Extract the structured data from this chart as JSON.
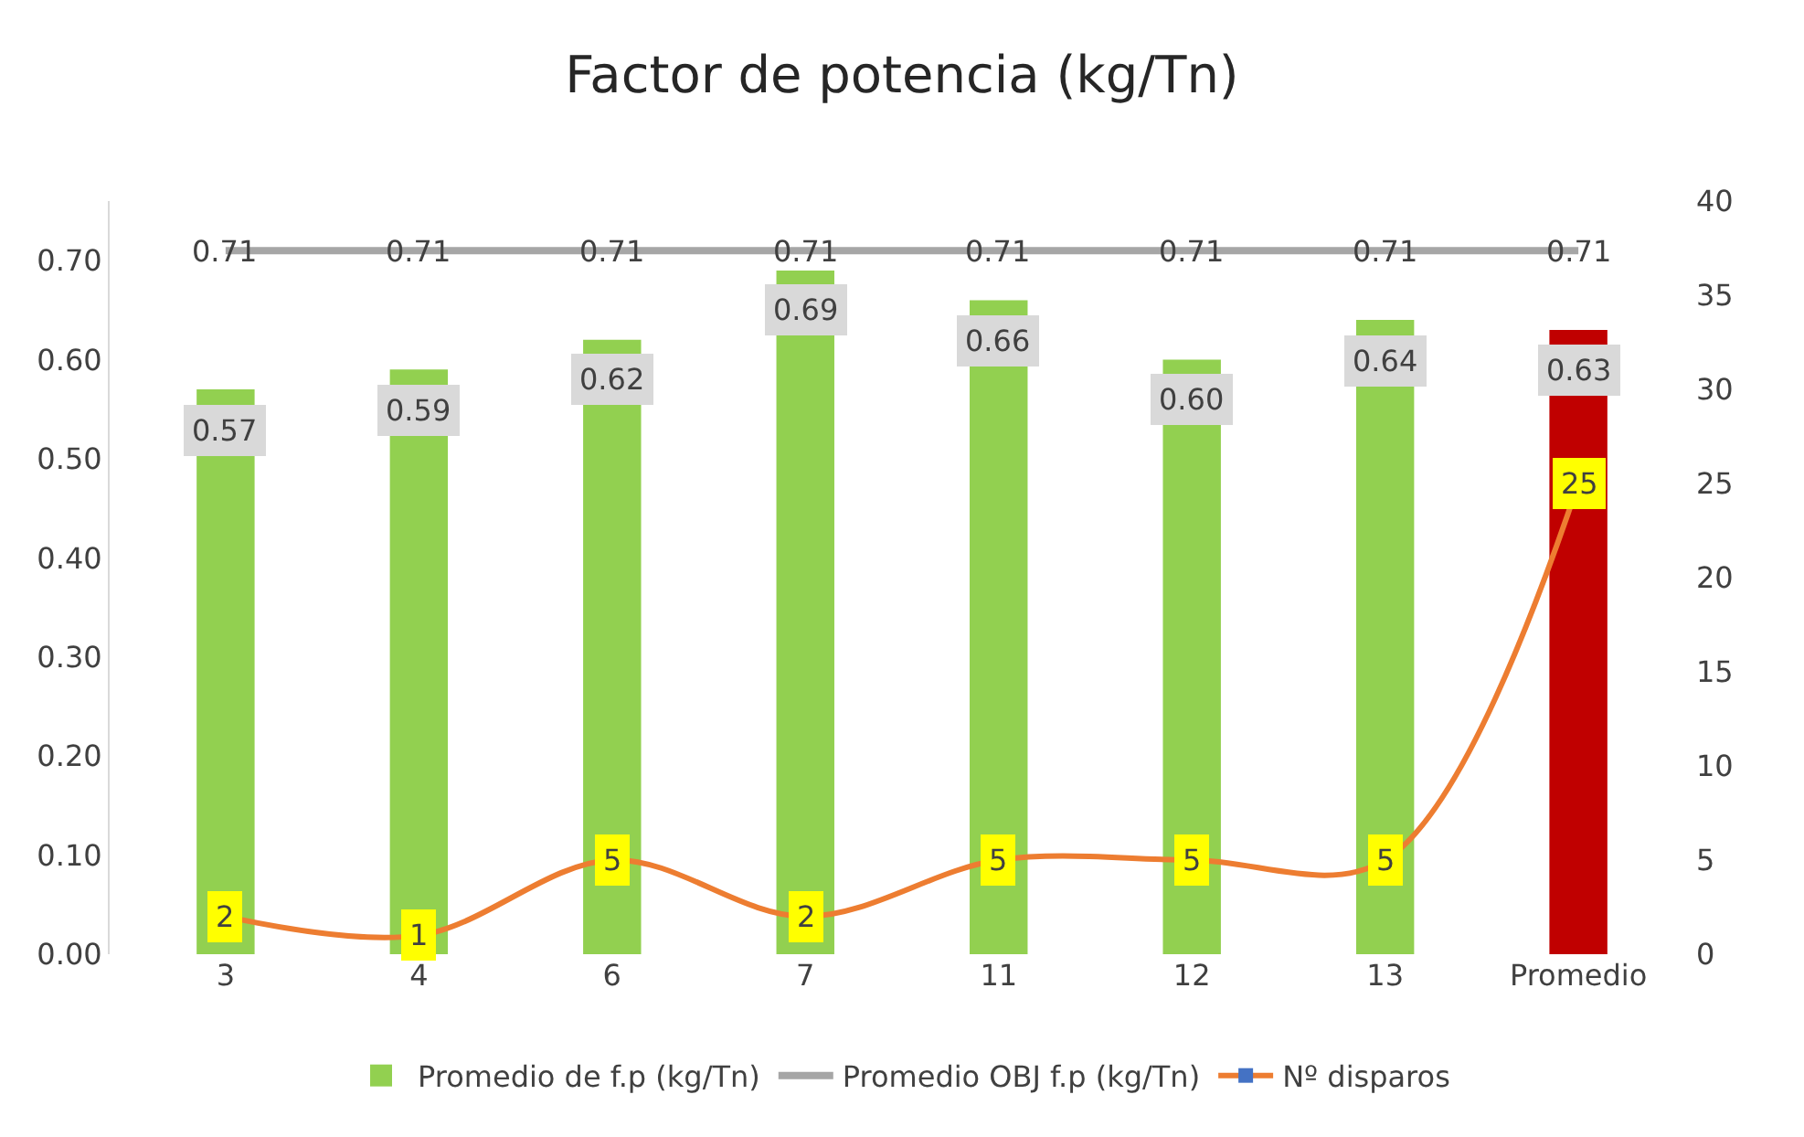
{
  "chart_data": {
    "type": "bar",
    "title": "Factor de potencia (kg/Tn)",
    "categories": [
      "3",
      "4",
      "6",
      "7",
      "11",
      "12",
      "13",
      "Promedio"
    ],
    "series": [
      {
        "name": "Promedio de f.p (kg/Tn)",
        "colors": [
          "#92d050",
          "#92d050",
          "#92d050",
          "#92d050",
          "#92d050",
          "#92d050",
          "#92d050",
          "#c00000"
        ],
        "values": [
          0.57,
          0.59,
          0.62,
          0.69,
          0.66,
          0.6,
          0.64,
          0.63
        ],
        "value_labels": [
          "0.57",
          "0.59",
          "0.62",
          "0.69",
          "0.66",
          "0.60",
          "0.64",
          "0.63"
        ]
      },
      {
        "name": "Promedio OBJ f.p (kg/Tn)",
        "type": "line",
        "color": "#a6a6a6",
        "marker": "none",
        "values": [
          0.71,
          0.71,
          0.71,
          0.71,
          0.71,
          0.71,
          0.71,
          0.71
        ],
        "value_labels": [
          "0.71",
          "0.71",
          "0.71",
          "0.71",
          "0.71",
          "0.71",
          "0.71",
          "0.71"
        ]
      },
      {
        "name": "Nº disparos",
        "type": "line",
        "axis": "y2",
        "color": "#ed7d31",
        "marker": "square",
        "values": [
          2,
          1,
          5,
          2,
          5,
          5,
          5,
          25
        ],
        "value_labels": [
          "2",
          "1",
          "5",
          "2",
          "5",
          "5",
          "5",
          "25"
        ]
      }
    ],
    "ylim": [
      0,
      0.76
    ],
    "yticks": [
      "0.00",
      "0.10",
      "0.20",
      "0.30",
      "0.40",
      "0.50",
      "0.60",
      "0.70"
    ],
    "y2lim": [
      0,
      40
    ],
    "y2ticks": [
      0,
      5,
      10,
      15,
      20,
      25,
      30,
      35,
      40
    ],
    "legend": "bottom"
  }
}
